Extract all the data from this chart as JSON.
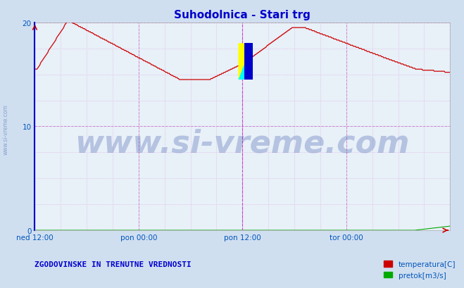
{
  "title": "Suhodolnica - Stari trg",
  "title_color": "#0000cc",
  "title_fontsize": 11,
  "bg_color": "#d0dff0",
  "plot_bg_color": "#e8f0f8",
  "grid_color_major": "#cc88cc",
  "grid_color_minor": "#ddaadd",
  "temp_color": "#cc0000",
  "flow_color": "#00aa00",
  "xtick_labels": [
    "ned 12:00",
    "pon 00:00",
    "pon 12:00",
    "tor 00:00"
  ],
  "xtick_positions": [
    0.0,
    0.25,
    0.5,
    0.75
  ],
  "yticks": [
    0,
    10,
    20
  ],
  "ymin": 0,
  "ymax": 20,
  "xmin": 0,
  "xmax": 1,
  "watermark_text": "www.si-vreme.com",
  "watermark_color": "#2040a0",
  "watermark_alpha": 0.25,
  "watermark_fontsize": 32,
  "legend_label1": "temperatura[C]",
  "legend_label2": "pretok[m3/s]",
  "legend_color1": "#cc0000",
  "legend_color2": "#00aa00",
  "footer_text": "ZGODOVINSKE IN TRENUTNE VREDNOSTI",
  "footer_color": "#0000cc",
  "footer_fontsize": 8,
  "vertical_line_color": "#cc44cc",
  "left_border_color": "#0000cc",
  "right_border_color": "#cc0000",
  "n_points": 576,
  "sidebar_text": "www.si-vreme.com",
  "sidebar_color": "#6688bb",
  "sidebar_alpha": 0.7
}
